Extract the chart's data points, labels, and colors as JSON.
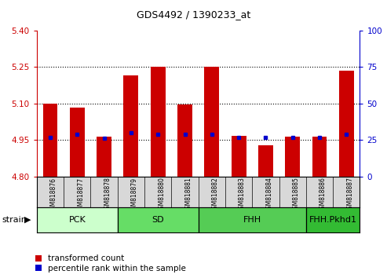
{
  "title": "GDS4492 / 1390233_at",
  "samples": [
    "GSM818876",
    "GSM818877",
    "GSM818878",
    "GSM818879",
    "GSM818880",
    "GSM818881",
    "GSM818882",
    "GSM818883",
    "GSM818884",
    "GSM818885",
    "GSM818886",
    "GSM818887"
  ],
  "bar_values": [
    5.1,
    5.085,
    4.965,
    5.215,
    5.25,
    5.095,
    5.25,
    4.968,
    4.93,
    4.965,
    4.965,
    5.235
  ],
  "percentile_values": [
    27,
    29,
    26,
    30,
    29,
    29,
    29,
    27,
    27,
    27,
    27,
    29
  ],
  "bar_bottom": 4.8,
  "ylim_left": [
    4.8,
    5.4
  ],
  "ylim_right": [
    0,
    100
  ],
  "yticks_left": [
    4.8,
    4.95,
    5.1,
    5.25,
    5.4
  ],
  "yticks_right": [
    0,
    25,
    50,
    75,
    100
  ],
  "hlines": [
    4.95,
    5.1,
    5.25
  ],
  "bar_color": "#cc0000",
  "percentile_color": "#0000cc",
  "strain_groups": [
    {
      "label": "PCK",
      "start": 0,
      "end": 2,
      "color": "#ccffcc"
    },
    {
      "label": "SD",
      "start": 3,
      "end": 5,
      "color": "#66dd66"
    },
    {
      "label": "FHH",
      "start": 6,
      "end": 9,
      "color": "#55cc55"
    },
    {
      "label": "FHH.Pkhd1",
      "start": 10,
      "end": 11,
      "color": "#33bb33"
    }
  ],
  "legend_red_label": "transformed count",
  "legend_blue_label": "percentile rank within the sample",
  "strain_label": "strain",
  "bar_width": 0.55,
  "tick_color_left": "#cc0000",
  "tick_color_right": "#0000cc",
  "bg_color": "#ffffff",
  "xlabel_bg": "#d8d8d8",
  "xlabel_fontsize": 5.5,
  "label_fontsize": 8,
  "title_fontsize": 9
}
